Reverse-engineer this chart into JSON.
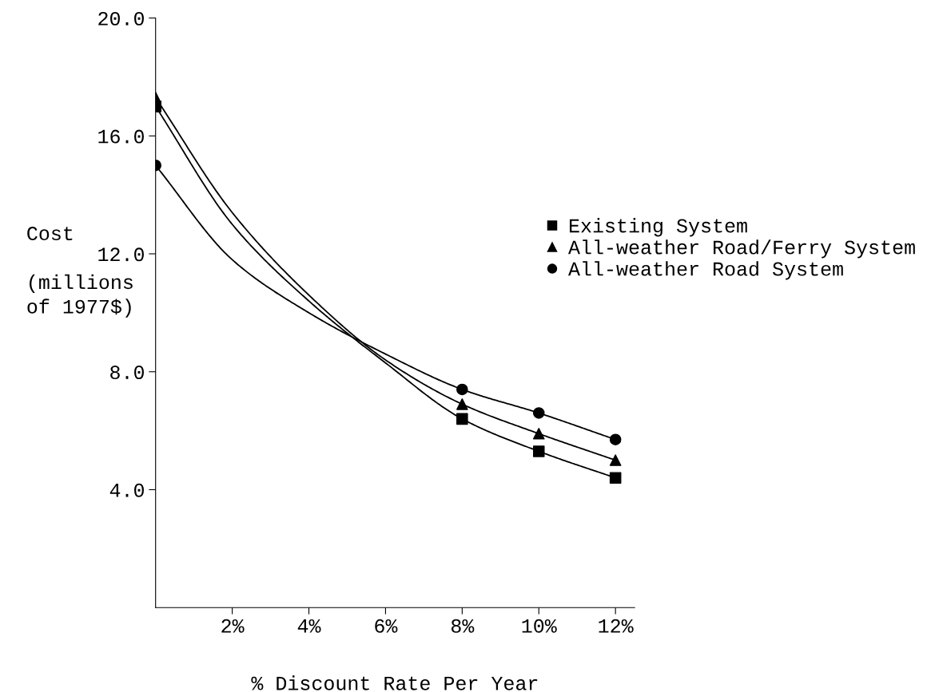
{
  "chart_data": {
    "type": "line",
    "xlabel": "% Discount Rate Per Year",
    "ylabel": "Cost\n\n(millions\nof 1977$)",
    "xlim": [
      0,
      12.5
    ],
    "ylim": [
      0,
      20
    ],
    "xticks": [
      {
        "value": 2,
        "label": "2%"
      },
      {
        "value": 4,
        "label": "4%"
      },
      {
        "value": 6,
        "label": "6%"
      },
      {
        "value": 8,
        "label": "8%"
      },
      {
        "value": 10,
        "label": "10%"
      },
      {
        "value": 12,
        "label": "12%"
      }
    ],
    "yticks": [
      {
        "value": 4,
        "label": "4.0"
      },
      {
        "value": 8,
        "label": "8.0"
      },
      {
        "value": 12,
        "label": "12.0"
      },
      {
        "value": 16,
        "label": "16.0"
      },
      {
        "value": 20,
        "label": "20.0"
      }
    ],
    "grid": false,
    "legend": "right",
    "line_style": "solid",
    "series": [
      {
        "color": "#000000",
        "marker": "none",
        "x": [
          0,
          2,
          4,
          6,
          8,
          10,
          12
        ],
        "values": [
          17.0,
          13.0,
          10.4,
          8.3,
          6.4,
          5.3,
          4.4
        ]
      },
      {
        "color": "#000000",
        "marker": "none",
        "x": [
          0,
          2,
          4,
          6,
          8,
          10,
          12
        ],
        "values": [
          17.3,
          13.4,
          10.6,
          8.4,
          6.9,
          5.9,
          5.0
        ]
      },
      {
        "color": "#000000",
        "marker": "none",
        "x": [
          0,
          2,
          4,
          6,
          8,
          10,
          12
        ],
        "values": [
          15.0,
          11.8,
          10.0,
          8.6,
          7.4,
          6.6,
          5.7
        ]
      },
      {
        "type": "scatter",
        "name": "Existing System",
        "color": "#000000",
        "marker": "square",
        "x": [
          0,
          8,
          10,
          12
        ],
        "values": [
          17.0,
          6.4,
          5.3,
          4.4
        ]
      },
      {
        "type": "scatter",
        "name": "All-weather Road/Ferry System",
        "color": "#000000",
        "marker": "triangle",
        "x": [
          0,
          8,
          10,
          12
        ],
        "values": [
          17.3,
          6.9,
          5.9,
          5.0
        ]
      },
      {
        "type": "scatter",
        "name": "All-weather Road System",
        "color": "#000000",
        "marker": "circle",
        "x": [
          0,
          8,
          10,
          12
        ],
        "values": [
          15.0,
          7.4,
          6.6,
          5.7
        ]
      }
    ]
  }
}
